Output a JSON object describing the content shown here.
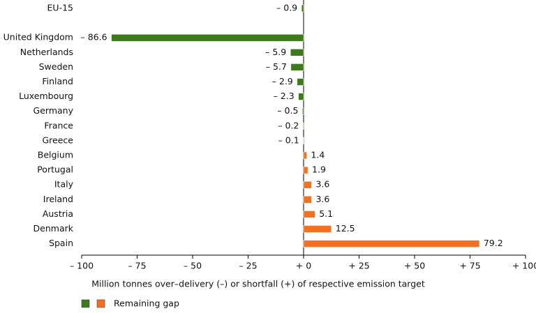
{
  "chart_data": {
    "type": "hbar",
    "categories": [
      "EU-15",
      null,
      "United Kingdom",
      "Netherlands",
      "Sweden",
      "Finland",
      "Luxembourg",
      "Germany",
      "France",
      "Greece",
      "Belgium",
      "Portugal",
      "Italy",
      "Ireland",
      "Austria",
      "Denmark",
      "Spain"
    ],
    "values": [
      -0.9,
      null,
      -86.6,
      -5.9,
      -5.7,
      -2.9,
      -2.3,
      -0.5,
      -0.2,
      -0.1,
      1.4,
      1.9,
      3.6,
      3.6,
      5.1,
      12.5,
      79.2
    ],
    "value_labels": [
      "– 0.9",
      null,
      "– 86.6",
      "– 5.9",
      "– 5.7",
      "– 2.9",
      "– 2.3",
      "– 0.5",
      "– 0.2",
      "– 0.1",
      "1.4",
      "1.9",
      "3.6",
      "3.6",
      "5.1",
      "12.5",
      "79.2"
    ],
    "colors": [
      "#3d7a1c",
      "#f5701e"
    ],
    "xlim": [
      -100,
      100
    ],
    "xticks": [
      {
        "value": -100,
        "label": "– 100"
      },
      {
        "value": -75,
        "label": "– 75"
      },
      {
        "value": -50,
        "label": "– 50"
      },
      {
        "value": -25,
        "label": "– 25"
      },
      {
        "value": 0,
        "label": "+ 0"
      },
      {
        "value": 25,
        "label": "+ 25"
      },
      {
        "value": 50,
        "label": "+ 50"
      },
      {
        "value": 75,
        "label": "+ 75"
      },
      {
        "value": 100,
        "label": "+ 100"
      }
    ],
    "xlabel": "Million tonnes over–delivery (–) or shortfall (+) of respective emission target",
    "legend_label": "Remaining gap"
  }
}
